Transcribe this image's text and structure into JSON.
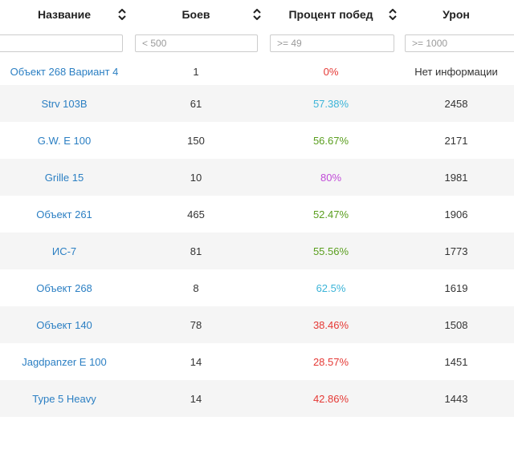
{
  "header": {
    "columns": [
      {
        "label": "Название",
        "sortable": true
      },
      {
        "label": "Боев",
        "sortable": true
      },
      {
        "label": "Процент побед",
        "sortable": true
      },
      {
        "label": "Урон",
        "sortable": false
      }
    ]
  },
  "filters": {
    "name": {
      "value": "",
      "placeholder": ""
    },
    "battles": {
      "value": "",
      "placeholder": "< 500"
    },
    "winrate": {
      "value": "",
      "placeholder": ">= 49"
    },
    "damage": {
      "value": "",
      "placeholder": ">= 1000"
    }
  },
  "colors": {
    "link": "#2b7fc3",
    "winrate_red": "#e53935",
    "winrate_green": "#5a9e1e",
    "winrate_cyan": "#3cb4d8",
    "winrate_purple": "#c04bd8",
    "stripe": "#f5f5f5"
  },
  "rows": [
    {
      "name": "Объект 268 Вариант 4",
      "battles": "1",
      "winrate": "0%",
      "winrate_color": "#e53935",
      "damage": "Нет информации"
    },
    {
      "name": "Strv 103B",
      "battles": "61",
      "winrate": "57.38%",
      "winrate_color": "#3cb4d8",
      "damage": "2458"
    },
    {
      "name": "G.W. E 100",
      "battles": "150",
      "winrate": "56.67%",
      "winrate_color": "#5a9e1e",
      "damage": "2171"
    },
    {
      "name": "Grille 15",
      "battles": "10",
      "winrate": "80%",
      "winrate_color": "#c04bd8",
      "damage": "1981"
    },
    {
      "name": "Объект 261",
      "battles": "465",
      "winrate": "52.47%",
      "winrate_color": "#5a9e1e",
      "damage": "1906"
    },
    {
      "name": "ИС-7",
      "battles": "81",
      "winrate": "55.56%",
      "winrate_color": "#5a9e1e",
      "damage": "1773"
    },
    {
      "name": "Объект 268",
      "battles": "8",
      "winrate": "62.5%",
      "winrate_color": "#3cb4d8",
      "damage": "1619"
    },
    {
      "name": "Объект 140",
      "battles": "78",
      "winrate": "38.46%",
      "winrate_color": "#e53935",
      "damage": "1508"
    },
    {
      "name": "Jagdpanzer E 100",
      "battles": "14",
      "winrate": "28.57%",
      "winrate_color": "#e53935",
      "damage": "1451"
    },
    {
      "name": "Type 5 Heavy",
      "battles": "14",
      "winrate": "42.86%",
      "winrate_color": "#e53935",
      "damage": "1443"
    },
    {
      "name": "",
      "battles": "",
      "winrate": "",
      "winrate_color": "#333333",
      "damage": ""
    }
  ]
}
